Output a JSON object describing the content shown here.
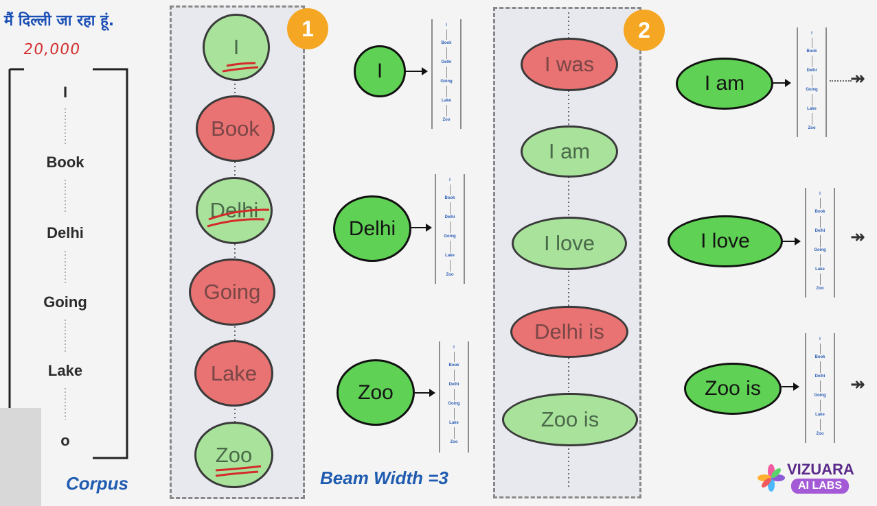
{
  "heading": "मैं दिल्ली जा रहा हूं.",
  "vocab_size_note": "20,000",
  "vocab_items": [
    "I",
    "Book",
    "Delhi",
    "Going",
    "Lake",
    "o"
  ],
  "corpus_label": "Corpus",
  "beam_label": "Beam Width =3",
  "step_badges": [
    "1",
    "2"
  ],
  "step1_nodes": [
    "I",
    "Book",
    "Delhi",
    "Going",
    "Lake",
    "Zoo"
  ],
  "selected_step1": [
    "I",
    "Delhi",
    "Zoo"
  ],
  "mini_vocab": [
    "I",
    "Book",
    "Delhi",
    "Going",
    "Lake",
    "Zoo"
  ],
  "step2_nodes": [
    "I was",
    "I am",
    "I love",
    "Delhi is",
    "Zoo is"
  ],
  "selected_step2": [
    "I am",
    "I love",
    "Zoo is"
  ],
  "more_symbol": "↠",
  "logo": {
    "name": "VIZUARA",
    "sub": "AI LABS"
  },
  "colors": {
    "rejected": "#e97272",
    "kept_faded": "#a9e39b",
    "selected": "#5fd154",
    "badge": "#f5a623",
    "text_blue": "#1f5bb0"
  }
}
